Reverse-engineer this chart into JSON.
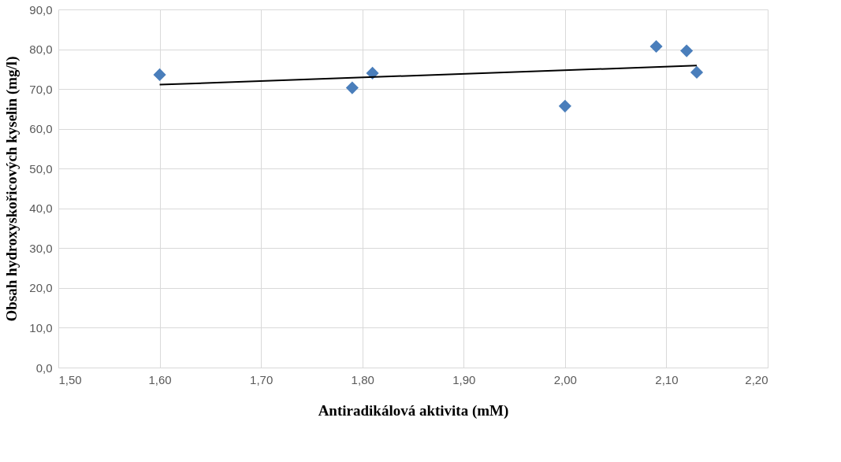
{
  "chart_data": {
    "type": "scatter",
    "xlabel": "Antiradikálová  aktivita (mM)",
    "ylabel": "Obsah hydroxyskořicových kyselin  (mg/l)",
    "series": [
      {
        "color": "#4a7ebb",
        "marker": "diamond",
        "x": [
          1.6,
          1.79,
          1.81,
          2.0,
          2.09,
          2.12,
          2.13
        ],
        "values": [
          73.6,
          70.3,
          74.0,
          65.7,
          80.7,
          79.6,
          74.2
        ]
      },
      {
        "type": "line",
        "color": "#000000",
        "marker": "none",
        "line_style": "solid",
        "x": [
          1.6,
          2.13
        ],
        "values": [
          71.1,
          75.9
        ]
      }
    ],
    "xlim": [
      1.5,
      2.2
    ],
    "xticks": [
      {
        "value": 1.5,
        "label": "1,50"
      },
      {
        "value": 1.6,
        "label": "1,60"
      },
      {
        "value": 1.7,
        "label": "1,70"
      },
      {
        "value": 1.8,
        "label": "1,80"
      },
      {
        "value": 1.9,
        "label": "1,90"
      },
      {
        "value": 2.0,
        "label": "2,00"
      },
      {
        "value": 2.1,
        "label": "2,10"
      },
      {
        "value": 2.2,
        "label": "2,20"
      }
    ],
    "ylim": [
      0,
      90
    ],
    "yticks": [
      {
        "value": 0,
        "label": "0,0"
      },
      {
        "value": 10,
        "label": "10,0"
      },
      {
        "value": 20,
        "label": "20,0"
      },
      {
        "value": 30,
        "label": "30,0"
      },
      {
        "value": 40,
        "label": "40,0"
      },
      {
        "value": 50,
        "label": "50,0"
      },
      {
        "value": 60,
        "label": "60,0"
      },
      {
        "value": 70,
        "label": "70,0"
      },
      {
        "value": 80,
        "label": "80,0"
      },
      {
        "value": 90,
        "label": "90,0"
      }
    ],
    "grid": true
  }
}
